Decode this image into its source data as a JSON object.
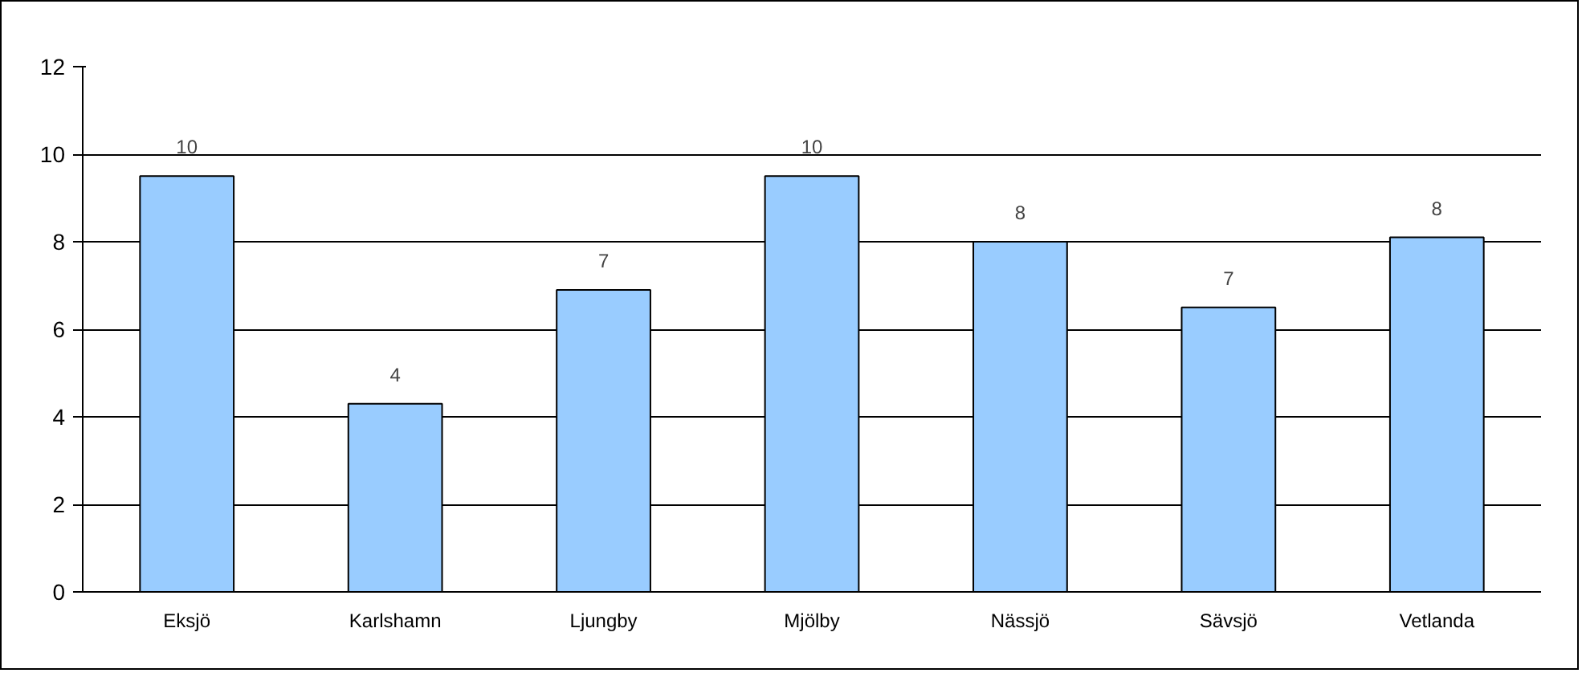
{
  "chart_data": {
    "type": "bar",
    "categories": [
      "Eksjö",
      "Karlshamn",
      "Ljungby",
      "Mjölby",
      "Nässjö",
      "Sävsjö",
      "Vetlanda"
    ],
    "values": [
      9.5,
      4.3,
      6.9,
      9.5,
      8.0,
      6.5,
      8.1
    ],
    "value_labels": [
      "10",
      "4",
      "7",
      "10",
      "8",
      "7",
      "8"
    ],
    "color": "#99ccff",
    "ylim": [
      0,
      12
    ],
    "yticks": [
      0,
      2,
      4,
      6,
      8,
      10,
      12
    ],
    "grid": "y"
  }
}
